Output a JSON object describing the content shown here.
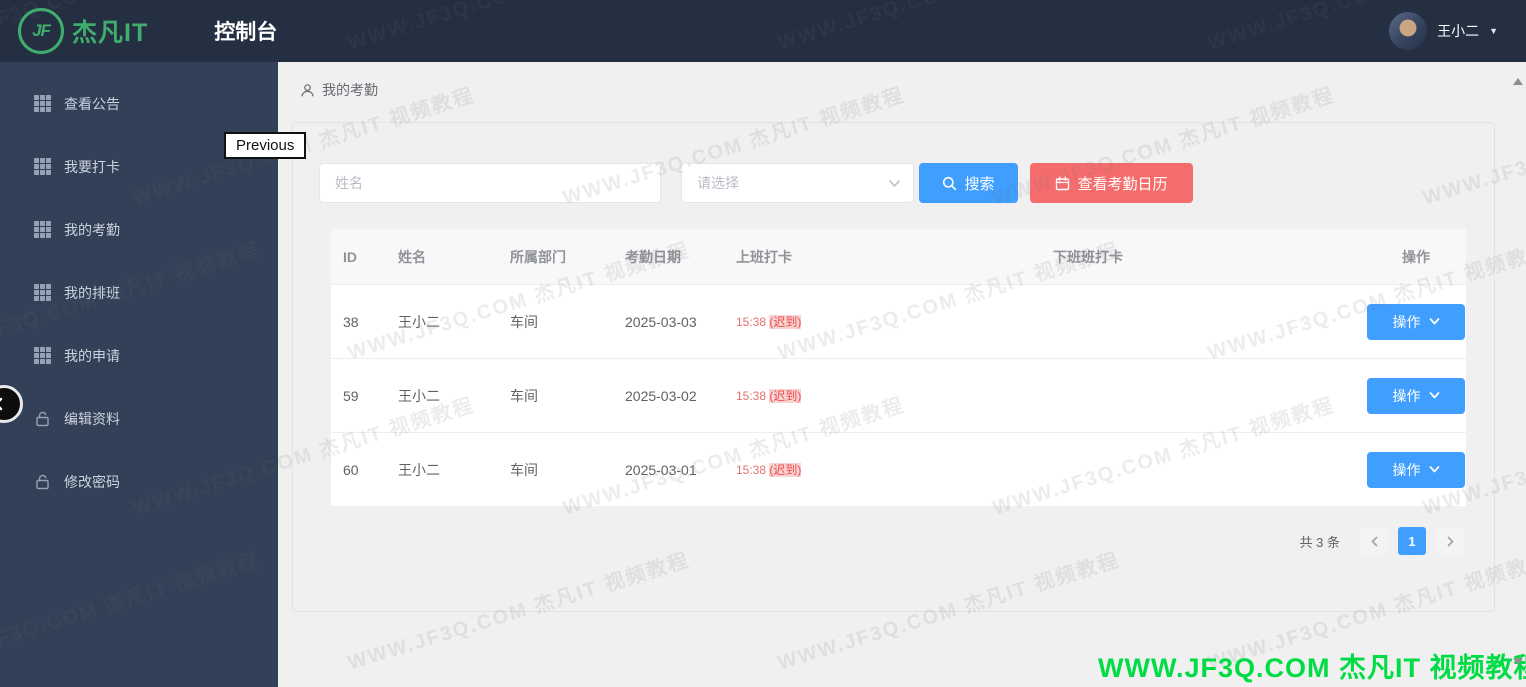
{
  "header": {
    "brand": "杰凡IT",
    "brand_badge": "JF",
    "title": "控制台",
    "user_name": "王小二"
  },
  "sidebar": {
    "items": [
      {
        "key": "view-announcements",
        "label": "查看公告",
        "icon": "grid-icon"
      },
      {
        "key": "clock-in",
        "label": "我要打卡",
        "icon": "grid-icon"
      },
      {
        "key": "my-attendance",
        "label": "我的考勤",
        "icon": "grid-icon"
      },
      {
        "key": "my-schedule",
        "label": "我的排班",
        "icon": "grid-icon"
      },
      {
        "key": "my-applications",
        "label": "我的申请",
        "icon": "grid-icon"
      },
      {
        "key": "edit-profile",
        "label": "编辑资料",
        "icon": "unlock-icon"
      },
      {
        "key": "change-password",
        "label": "修改密码",
        "icon": "unlock-icon"
      }
    ]
  },
  "tooltip": {
    "text": "Previous"
  },
  "breadcrumb": {
    "label": "我的考勤"
  },
  "filters": {
    "name_placeholder": "姓名",
    "select_placeholder": "请选择",
    "search_label": "搜索",
    "calendar_label": "查看考勤日历"
  },
  "table": {
    "columns": [
      "ID",
      "姓名",
      "所属部门",
      "考勤日期",
      "上班打卡",
      "下班班打卡",
      "操作"
    ],
    "action_label": "操作",
    "rows": [
      {
        "id": "38",
        "name": "王小二",
        "dept": "车间",
        "date": "2025-03-03",
        "checkin_time": "15:38",
        "checkin_tag": "(迟到)",
        "checkout": ""
      },
      {
        "id": "59",
        "name": "王小二",
        "dept": "车间",
        "date": "2025-03-02",
        "checkin_time": "15:38",
        "checkin_tag": "(迟到)",
        "checkout": ""
      },
      {
        "id": "60",
        "name": "王小二",
        "dept": "车间",
        "date": "2025-03-01",
        "checkin_time": "15:38",
        "checkin_tag": "(迟到)",
        "checkout": ""
      }
    ]
  },
  "pagination": {
    "total_text": "共 3 条",
    "current_page": "1"
  },
  "watermark": {
    "tile_text": "WWW.JF3Q.COM 杰凡IT 视频教程",
    "footer_text": "WWW.JF3Q.COM 杰凡IT 视频教程"
  },
  "colors": {
    "header_bg": "#242f42",
    "sidebar_bg": "#324157",
    "brand_green": "#3fae6d",
    "primary_blue": "#409eff",
    "danger_red": "#f56c6c",
    "footer_green": "#00dd44"
  }
}
